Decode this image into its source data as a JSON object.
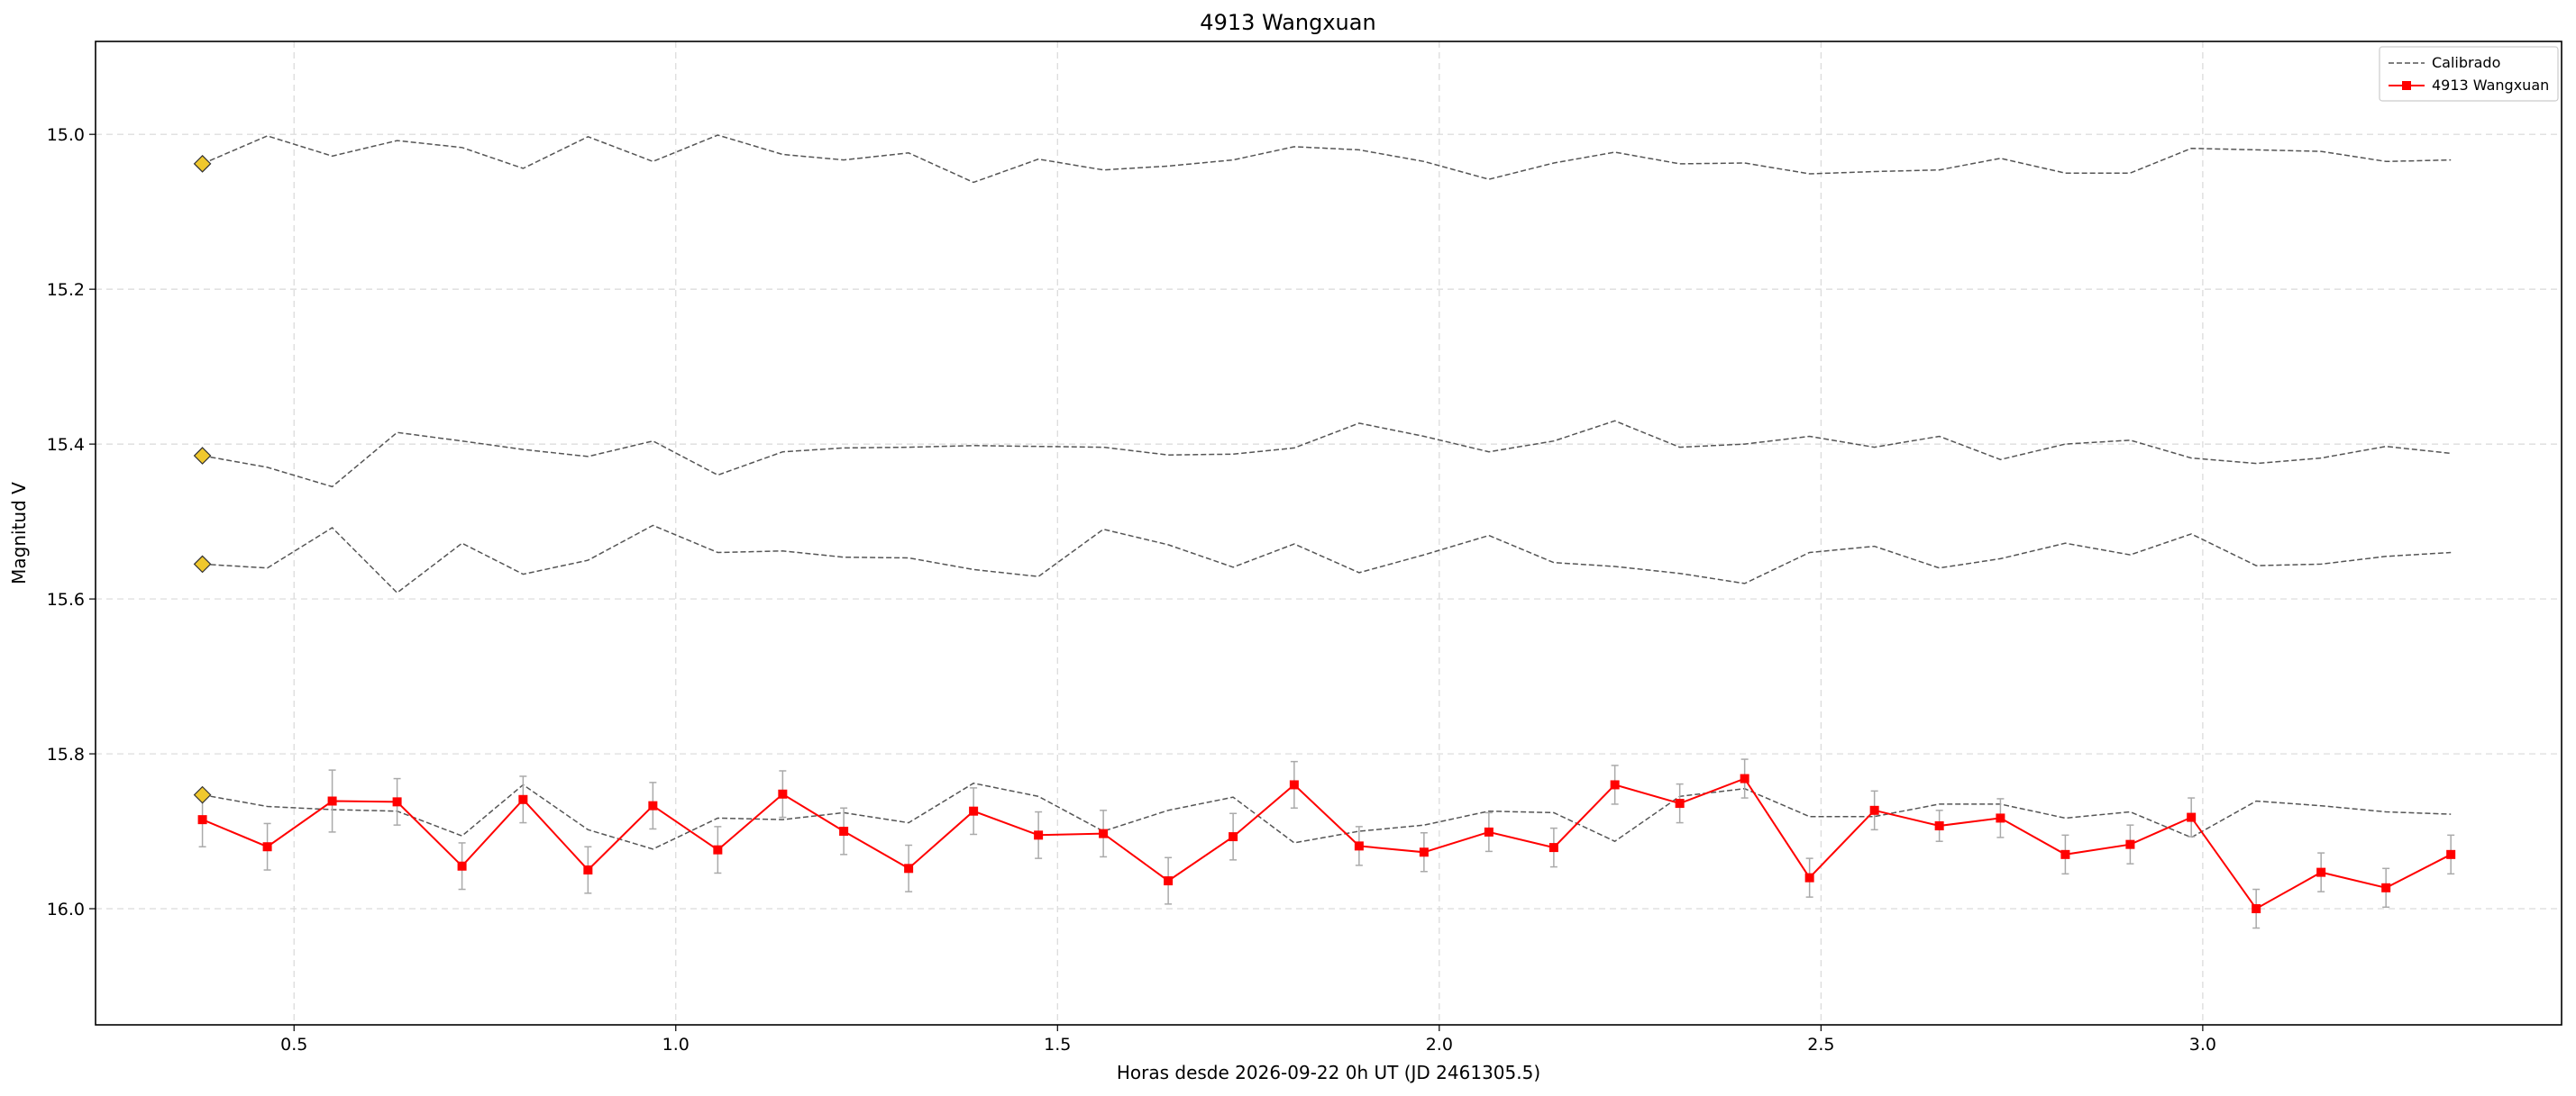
{
  "chart_data": {
    "type": "line",
    "title": "4913 Wangxuan",
    "xlabel": "Horas desde 2026-09-22 0h UT (JD 2461305.5)",
    "ylabel": "Magnitud V",
    "xlim": [
      0.24,
      3.47
    ],
    "ylim": [
      16.15,
      14.88
    ],
    "y_inverted": true,
    "grid": true,
    "legend_position": "upper-right",
    "x_ticks": [
      "0.5",
      "1.0",
      "1.5",
      "2.0",
      "2.5",
      "3.0"
    ],
    "y_ticks": [
      "15.0",
      "15.2",
      "15.4",
      "15.6",
      "15.8",
      "16.0"
    ],
    "colors": {
      "calibrated": "#555555",
      "target": "#ff0000",
      "errorbar": "#aaaaaa",
      "marker_fill": "#f0c82d",
      "marker_edge": "#333333"
    },
    "x": [
      0.38,
      0.465,
      0.55,
      0.635,
      0.72,
      0.8,
      0.885,
      0.97,
      1.055,
      1.14,
      1.22,
      1.305,
      1.39,
      1.475,
      1.56,
      1.645,
      1.73,
      1.81,
      1.895,
      1.98,
      2.065,
      2.15,
      2.23,
      2.315,
      2.4,
      2.485,
      2.57,
      2.655,
      2.735,
      2.82,
      2.905,
      2.985,
      3.07,
      3.155,
      3.24,
      3.325
    ],
    "legend": [
      "Calibrado",
      "4913 Wangxuan"
    ],
    "series": [
      {
        "name": "Calibrado",
        "style": "dashed",
        "values": [
          15.038,
          15.002,
          15.028,
          15.008,
          15.017,
          15.044,
          15.003,
          15.035,
          15.001,
          15.026,
          15.033,
          15.024,
          15.062,
          15.032,
          15.046,
          15.041,
          15.033,
          15.016,
          15.02,
          15.035,
          15.058,
          15.037,
          15.023,
          15.038,
          15.037,
          15.051,
          15.048,
          15.046,
          15.031,
          15.05,
          15.05,
          15.018,
          15.02,
          15.022,
          15.035,
          15.033
        ]
      },
      {
        "name": "Calibrado",
        "style": "dashed",
        "values": [
          15.415,
          15.43,
          15.455,
          15.385,
          15.396,
          15.407,
          15.416,
          15.396,
          15.44,
          15.41,
          15.405,
          15.404,
          15.402,
          15.403,
          15.404,
          15.414,
          15.413,
          15.405,
          15.373,
          15.39,
          15.41,
          15.396,
          15.37,
          15.404,
          15.4,
          15.39,
          15.404,
          15.39,
          15.42,
          15.4,
          15.395,
          15.418,
          15.425,
          15.418,
          15.403,
          15.412
        ]
      },
      {
        "name": "Calibrado",
        "style": "dashed",
        "values": [
          15.555,
          15.56,
          15.508,
          15.592,
          15.528,
          15.568,
          15.55,
          15.505,
          15.54,
          15.538,
          15.546,
          15.547,
          15.562,
          15.571,
          15.51,
          15.53,
          15.559,
          15.529,
          15.566,
          15.543,
          15.518,
          15.553,
          15.558,
          15.567,
          15.58,
          15.54,
          15.532,
          15.56,
          15.548,
          15.528,
          15.543,
          15.516,
          15.557,
          15.555,
          15.545,
          15.54
        ]
      },
      {
        "name": "Calibrado",
        "style": "dashed",
        "values": [
          15.853,
          15.868,
          15.872,
          15.874,
          15.906,
          15.84,
          15.898,
          15.923,
          15.883,
          15.885,
          15.876,
          15.889,
          15.838,
          15.855,
          15.9,
          15.873,
          15.856,
          15.915,
          15.9,
          15.892,
          15.874,
          15.876,
          15.913,
          15.855,
          15.845,
          15.881,
          15.881,
          15.865,
          15.865,
          15.883,
          15.875,
          15.908,
          15.861,
          15.867,
          15.875,
          15.878
        ]
      },
      {
        "name": "4913 Wangxuan",
        "style": "solid-square",
        "values": [
          15.885,
          15.92,
          15.861,
          15.862,
          15.945,
          15.859,
          15.95,
          15.867,
          15.924,
          15.852,
          15.9,
          15.948,
          15.874,
          15.905,
          15.903,
          15.964,
          15.907,
          15.84,
          15.919,
          15.927,
          15.901,
          15.921,
          15.84,
          15.864,
          15.832,
          15.96,
          15.873,
          15.893,
          15.883,
          15.93,
          15.917,
          15.882,
          16.0,
          15.953,
          15.973,
          15.93
        ]
      }
    ],
    "errors": [
      0.035,
      0.03,
      0.04,
      0.03,
      0.03,
      0.03,
      0.03,
      0.03,
      0.03,
      0.03,
      0.03,
      0.03,
      0.03,
      0.03,
      0.03,
      0.03,
      0.03,
      0.03,
      0.025,
      0.025,
      0.025,
      0.025,
      0.025,
      0.025,
      0.025,
      0.025,
      0.025,
      0.02,
      0.025,
      0.025,
      0.025,
      0.025,
      0.025,
      0.025,
      0.025,
      0.025
    ],
    "reference_markers": [
      {
        "x": 0.38,
        "y": 15.038
      },
      {
        "x": 0.38,
        "y": 15.415
      },
      {
        "x": 0.38,
        "y": 15.555
      },
      {
        "x": 0.38,
        "y": 15.853
      }
    ]
  }
}
